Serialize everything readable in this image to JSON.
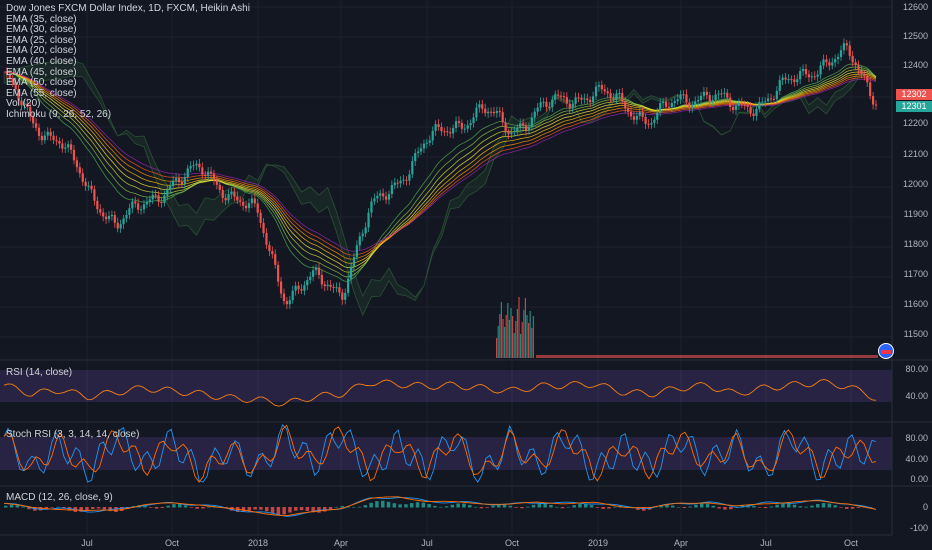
{
  "chart_data": [
    {
      "type": "line",
      "title": "Dow Jones FXCM Dollar Index, 1D, FXCM, Heikin Ashi",
      "indicators": [
        "EMA (35, close)",
        "EMA (30, close)",
        "EMA (25, close)",
        "EMA (20, close)",
        "EMA (40, close)",
        "EMA (45, close)",
        "EMA (50, close)",
        "EMA (55, close)",
        "Vol (20)",
        "Ichimoku (9, 26, 52, 26)"
      ],
      "x_tick_labels": [
        "Jul",
        "Oct",
        "2018",
        "Apr",
        "Jul",
        "Oct",
        "2019",
        "Apr",
        "Jul",
        "Oct"
      ],
      "y_tick_labels": [
        "12600",
        "12500",
        "12400",
        "12300",
        "12200",
        "12100",
        "12000",
        "11900",
        "11800",
        "11700",
        "11600",
        "11500"
      ],
      "ylim": [
        11440,
        12620
      ],
      "last_price_tags": [
        "12302",
        "12301"
      ],
      "x": [
        "2017-04",
        "2017-05",
        "2017-06",
        "2017-07",
        "2017-08",
        "2017-09",
        "2017-10",
        "2017-11",
        "2017-12",
        "2018-01",
        "2018-02",
        "2018-03",
        "2018-04",
        "2018-05",
        "2018-06",
        "2018-07",
        "2018-08",
        "2018-09",
        "2018-10",
        "2018-11",
        "2018-12",
        "2019-01",
        "2019-02",
        "2019-03",
        "2019-04",
        "2019-05",
        "2019-06",
        "2019-07",
        "2019-08",
        "2019-09",
        "2019-10",
        "2019-11"
      ],
      "series": [
        {
          "values": [
            12380,
            12200,
            12150,
            11950,
            11850,
            11900,
            12000,
            12030,
            11960,
            11870,
            11580,
            11640,
            11600,
            11880,
            12000,
            12130,
            12200,
            12250,
            12180,
            12250,
            12290,
            12320,
            12270,
            12220,
            12280,
            12320,
            12250,
            12290,
            12350,
            12420,
            12450,
            12300
          ]
        }
      ],
      "grid": true
    },
    {
      "type": "line",
      "title": "RSI (14, close)",
      "y_tick_labels": [
        "80.00",
        "40.00"
      ],
      "ylim": [
        0,
        100
      ],
      "series": [
        {
          "values": [
            60,
            45,
            52,
            40,
            48,
            55,
            50,
            45,
            38,
            35,
            28,
            40,
            45,
            65,
            62,
            58,
            60,
            55,
            50,
            58,
            60,
            62,
            48,
            45,
            55,
            60,
            45,
            55,
            60,
            65,
            58,
            38
          ]
        }
      ]
    },
    {
      "type": "line",
      "title": "Stoch RSI (3, 3, 14, 14, close)",
      "y_tick_labels": [
        "80.00",
        "40.00",
        "0.00"
      ],
      "ylim": [
        0,
        100
      ],
      "series": [
        {
          "values": [
            80,
            20,
            70,
            15,
            85,
            25,
            75,
            10,
            60,
            20,
            85,
            30,
            90,
            15,
            70,
            20,
            80,
            10,
            75,
            25,
            85,
            15,
            65,
            20,
            80,
            30,
            70,
            15,
            85,
            20,
            60,
            50
          ]
        }
      ]
    },
    {
      "type": "line",
      "title": "MACD (12, 26, close, 9)",
      "y_tick_labels": [
        "0",
        "-100"
      ],
      "ylim": [
        -110,
        70
      ],
      "series": [
        {
          "values": [
            10,
            -10,
            -15,
            -25,
            -20,
            5,
            10,
            5,
            -15,
            -30,
            -45,
            -30,
            -10,
            30,
            40,
            20,
            15,
            10,
            5,
            15,
            10,
            12,
            -5,
            -10,
            10,
            15,
            -5,
            10,
            15,
            20,
            10,
            -20
          ]
        }
      ]
    }
  ],
  "colors": {
    "background": "#131722",
    "up": "#26a69a",
    "down": "#ef5350",
    "rsi_line": "#f57f17",
    "stoch_k": "#2196f3",
    "stoch_d": "#ff6d00",
    "macd": "#2196f3",
    "signal": "#ff6d00",
    "band": "#7e57c2",
    "price_tag_red": "#ef5350",
    "price_tag_green": "#26a69a"
  }
}
